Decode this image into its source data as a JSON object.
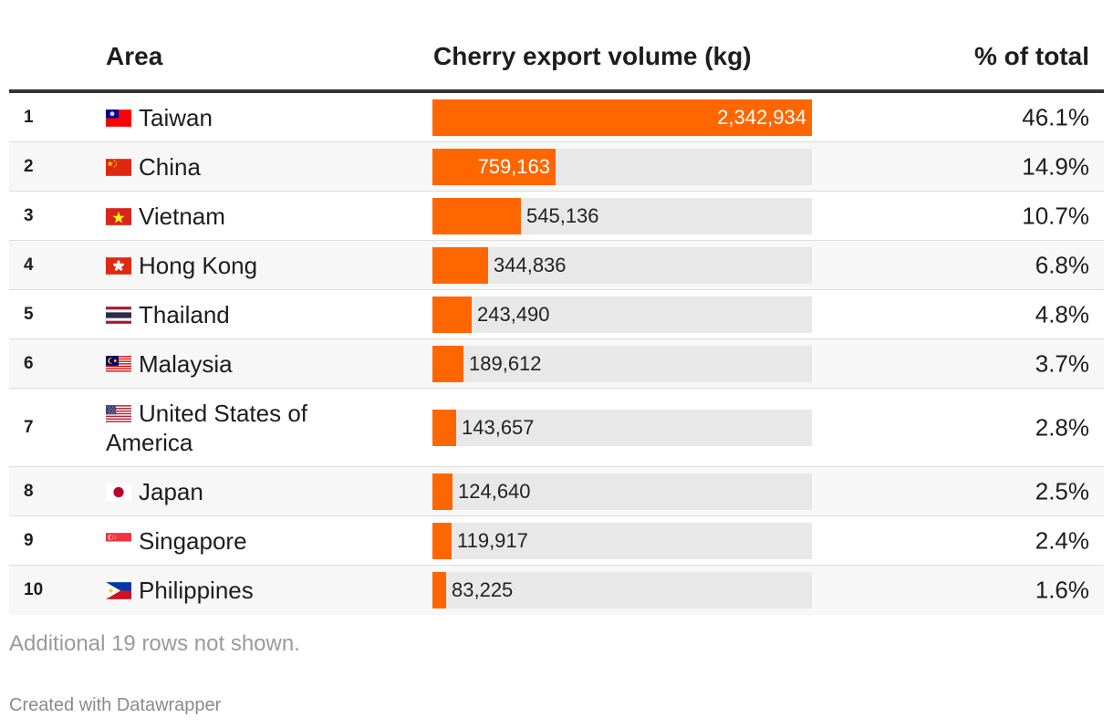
{
  "header": {
    "area_label": "Area",
    "volume_label": "Cherry export volume (kg)",
    "pct_label": "% of total"
  },
  "chart_data": {
    "type": "table",
    "title": "",
    "columns": [
      "Area",
      "Cherry export volume (kg)",
      "% of total"
    ],
    "max_value": 2342934,
    "rows": [
      {
        "rank": "1",
        "area": "Taiwan",
        "flag": "taiwan-flag-icon",
        "value": 2342934,
        "value_label": "2,342,934",
        "pct": "46.1%"
      },
      {
        "rank": "2",
        "area": "China",
        "flag": "china-flag-icon",
        "value": 759163,
        "value_label": "759,163",
        "pct": "14.9%"
      },
      {
        "rank": "3",
        "area": "Vietnam",
        "flag": "vietnam-flag-icon",
        "value": 545136,
        "value_label": "545,136",
        "pct": "10.7%"
      },
      {
        "rank": "4",
        "area": "Hong Kong",
        "flag": "hong-kong-flag-icon",
        "value": 344836,
        "value_label": "344,836",
        "pct": "6.8%"
      },
      {
        "rank": "5",
        "area": "Thailand",
        "flag": "thailand-flag-icon",
        "value": 243490,
        "value_label": "243,490",
        "pct": "4.8%"
      },
      {
        "rank": "6",
        "area": "Malaysia",
        "flag": "malaysia-flag-icon",
        "value": 189612,
        "value_label": "189,612",
        "pct": "3.7%"
      },
      {
        "rank": "7",
        "area": "United States of America",
        "flag": "usa-flag-icon",
        "value": 143657,
        "value_label": "143,657",
        "pct": "2.8%"
      },
      {
        "rank": "8",
        "area": "Japan",
        "flag": "japan-flag-icon",
        "value": 124640,
        "value_label": "124,640",
        "pct": "2.5%"
      },
      {
        "rank": "9",
        "area": "Singapore",
        "flag": "singapore-flag-icon",
        "value": 119917,
        "value_label": "119,917",
        "pct": "2.4%"
      },
      {
        "rank": "10",
        "area": "Philippines",
        "flag": "philippines-flag-icon",
        "value": 83225,
        "value_label": "83,225",
        "pct": "1.6%"
      }
    ]
  },
  "colors": {
    "bar": "#ff6600",
    "bar_track": "#e8e8e8"
  },
  "footer": {
    "note": "Additional 19 rows not shown.",
    "credit": "Created with Datawrapper"
  }
}
